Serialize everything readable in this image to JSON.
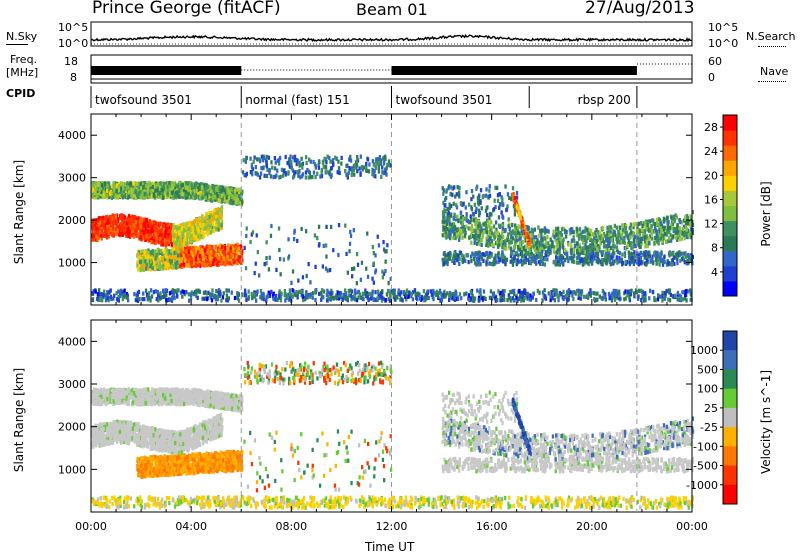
{
  "header": {
    "station": "Prince George (fitACF)",
    "beam": "Beam 01",
    "date": "27/Aug/2013"
  },
  "side_labels": {
    "nsky": "N.Sky",
    "freq_line1": "Freq.",
    "freq_line2": "[MHz]",
    "cpid": "CPID",
    "nsearch": "N.Search",
    "nave": "Nave",
    "sky_top": "10^5",
    "sky_bottom": "10^0",
    "search_top": "10^5",
    "search_bottom": "10^0",
    "freq_top": "18",
    "freq_bottom": "8",
    "nave_top": "60",
    "nave_bottom": "0"
  },
  "cpid_segments": [
    {
      "label": "twofsound 3501",
      "start": 0,
      "end": 6.0
    },
    {
      "label": "normal (fast) 151",
      "start": 6.0,
      "end": 12.0
    },
    {
      "label": "twofsound 3501",
      "start": 12.0,
      "end": 17.5
    },
    {
      "label": "rbsp 200",
      "start": 17.5,
      "end": 21.8
    }
  ],
  "chart_data": [
    {
      "type": "heatmap",
      "title": "",
      "xlabel": "Time UT",
      "ylabel": "Slant Range [km]",
      "xlim": [
        "00:00",
        "24:00"
      ],
      "ylim": [
        0,
        4500
      ],
      "x_ticks": [
        "00:00",
        "04:00",
        "08:00",
        "12:00",
        "16:00",
        "20:00",
        "00:00"
      ],
      "y_ticks": [
        "1000",
        "2000",
        "3000",
        "4000"
      ],
      "colorbar": {
        "label": "Power [dB]",
        "range": [
          0,
          30
        ],
        "ticks": [
          "4",
          "8",
          "12",
          "16",
          "20",
          "24",
          "28"
        ],
        "colors": [
          "#0000ff",
          "#1f3fcf",
          "#3366cc",
          "#2a7a55",
          "#3f9060",
          "#7fbf3f",
          "#a5c93a",
          "#ffd000",
          "#ffa500",
          "#ff6a00",
          "#ff3300",
          "#ff0000"
        ]
      },
      "features": [
        {
          "desc": "band",
          "t": [
            0,
            4.5
          ],
          "r_start": 1500,
          "r_end": 2100,
          "peak_db": 28
        },
        {
          "desc": "band",
          "t": [
            2,
            5.8
          ],
          "r_start": 900,
          "r_end": 1300,
          "peak_db": 26
        },
        {
          "desc": "band",
          "t": [
            0,
            6.0
          ],
          "r_start": 2500,
          "r_end": 2900,
          "peak_db": 16
        },
        {
          "desc": "streak",
          "t": [
            16.7,
            17.4
          ],
          "r_start": 2600,
          "r_end": 1500,
          "peak_db": 26
        }
      ]
    },
    {
      "type": "heatmap",
      "title": "",
      "xlabel": "Time UT",
      "ylabel": "Slant Range [km]",
      "xlim": [
        "00:00",
        "24:00"
      ],
      "ylim": [
        0,
        4500
      ],
      "x_ticks": [
        "00:00",
        "04:00",
        "08:00",
        "12:00",
        "16:00",
        "20:00",
        "00:00"
      ],
      "y_ticks": [
        "1000",
        "2000",
        "3000",
        "4000"
      ],
      "colorbar": {
        "label": "Velocity [m s^-1]",
        "ticks": [
          "1000",
          "500",
          "100",
          "25",
          "-25",
          "-100",
          "-500",
          "-1000"
        ],
        "colors": [
          "#2244aa",
          "#3d6fb8",
          "#2a8a55",
          "#66cc33",
          "#bfbfbf",
          "#ffb000",
          "#ff7700",
          "#ff3300",
          "#ff0000"
        ]
      }
    }
  ],
  "colors": {
    "ground_scatter": "#bfbfbf",
    "axis": "#000000"
  }
}
